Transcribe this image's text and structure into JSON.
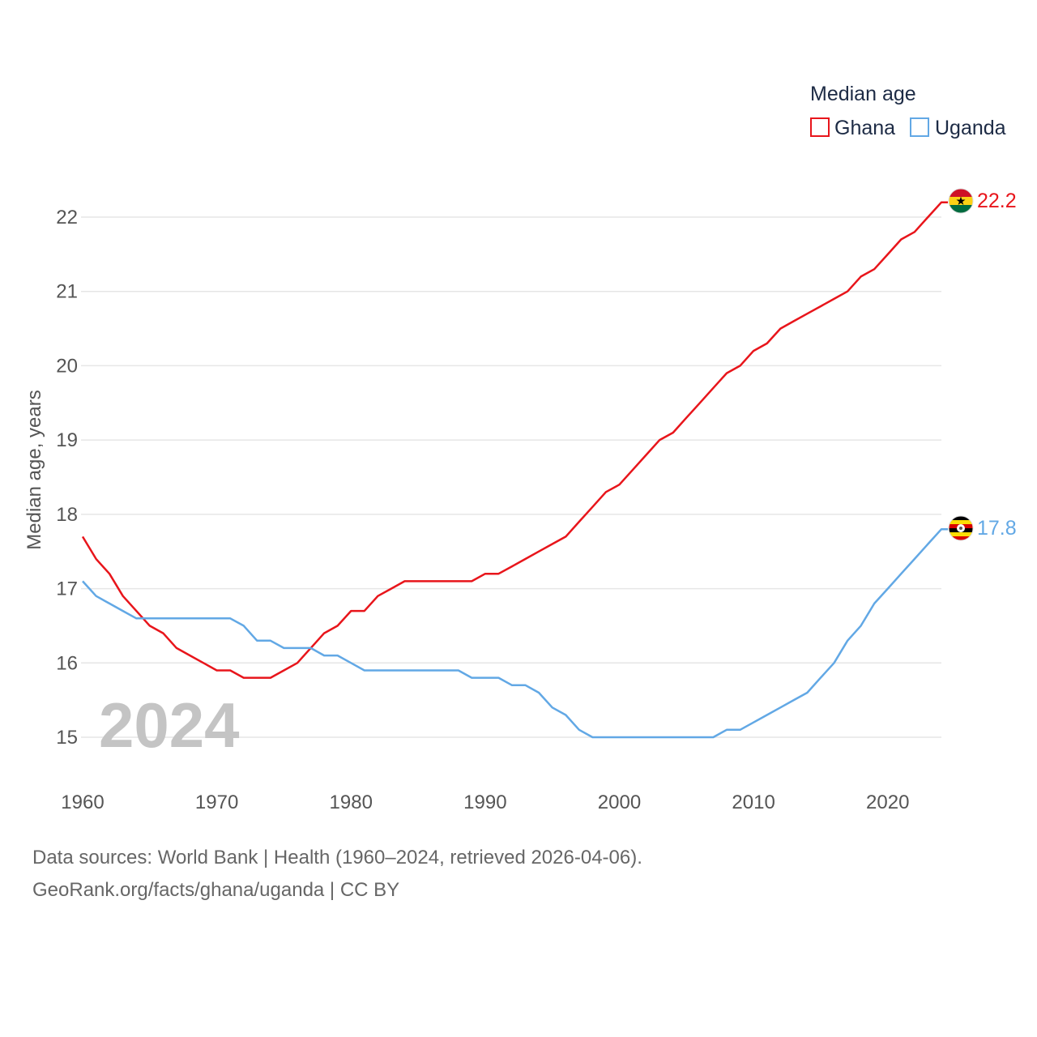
{
  "chart_data": {
    "type": "line",
    "ylabel": "Median age, years",
    "ylim": [
      14.5,
      22.6
    ],
    "xlim": [
      1960,
      2024
    ],
    "yticks": [
      "15",
      "16",
      "17",
      "18",
      "19",
      "20",
      "21",
      "22"
    ],
    "xticks": [
      "1960",
      "1970",
      "1980",
      "1990",
      "2000",
      "2010",
      "2020"
    ],
    "grid": true,
    "current_year": "2024",
    "legend": {
      "title": "Median age",
      "position": "top-right"
    },
    "x": [
      1960,
      1961,
      1962,
      1963,
      1964,
      1965,
      1966,
      1967,
      1968,
      1969,
      1970,
      1971,
      1972,
      1973,
      1974,
      1975,
      1976,
      1977,
      1978,
      1979,
      1980,
      1981,
      1982,
      1983,
      1984,
      1985,
      1986,
      1987,
      1988,
      1989,
      1990,
      1991,
      1992,
      1993,
      1994,
      1995,
      1996,
      1997,
      1998,
      1999,
      2000,
      2001,
      2002,
      2003,
      2004,
      2005,
      2006,
      2007,
      2008,
      2009,
      2010,
      2011,
      2012,
      2013,
      2014,
      2015,
      2016,
      2017,
      2018,
      2019,
      2020,
      2021,
      2022,
      2023,
      2024
    ],
    "series": [
      {
        "name": "Ghana",
        "color": "#e8151b",
        "end_label": "22.2",
        "values": [
          17.7,
          17.4,
          17.2,
          16.9,
          16.7,
          16.5,
          16.4,
          16.2,
          16.1,
          16.0,
          15.9,
          15.9,
          15.8,
          15.8,
          15.8,
          15.9,
          16.0,
          16.2,
          16.4,
          16.5,
          16.7,
          16.7,
          16.9,
          17.0,
          17.1,
          17.1,
          17.1,
          17.1,
          17.1,
          17.1,
          17.2,
          17.2,
          17.3,
          17.4,
          17.5,
          17.6,
          17.7,
          17.9,
          18.1,
          18.3,
          18.4,
          18.6,
          18.8,
          19.0,
          19.1,
          19.3,
          19.5,
          19.7,
          19.9,
          20.0,
          20.2,
          20.3,
          20.5,
          20.6,
          20.7,
          20.8,
          20.9,
          21.0,
          21.2,
          21.3,
          21.5,
          21.7,
          21.8,
          22.0,
          22.2
        ]
      },
      {
        "name": "Uganda",
        "color": "#62a8e5",
        "end_label": "17.8",
        "values": [
          17.1,
          16.9,
          16.8,
          16.7,
          16.6,
          16.6,
          16.6,
          16.6,
          16.6,
          16.6,
          16.6,
          16.6,
          16.5,
          16.3,
          16.3,
          16.2,
          16.2,
          16.2,
          16.1,
          16.1,
          16.0,
          15.9,
          15.9,
          15.9,
          15.9,
          15.9,
          15.9,
          15.9,
          15.9,
          15.8,
          15.8,
          15.8,
          15.7,
          15.7,
          15.6,
          15.4,
          15.3,
          15.1,
          15.0,
          15.0,
          15.0,
          15.0,
          15.0,
          15.0,
          15.0,
          15.0,
          15.0,
          15.0,
          15.1,
          15.1,
          15.2,
          15.3,
          15.4,
          15.5,
          15.6,
          15.8,
          16.0,
          16.3,
          16.5,
          16.8,
          17.0,
          17.2,
          17.4,
          17.6,
          17.8
        ]
      }
    ]
  },
  "source": {
    "line1": "Data sources: World Bank | Health (1960–2024, retrieved 2026-04-06).",
    "line2": "GeoRank.org/facts/ghana/uganda | CC BY"
  }
}
